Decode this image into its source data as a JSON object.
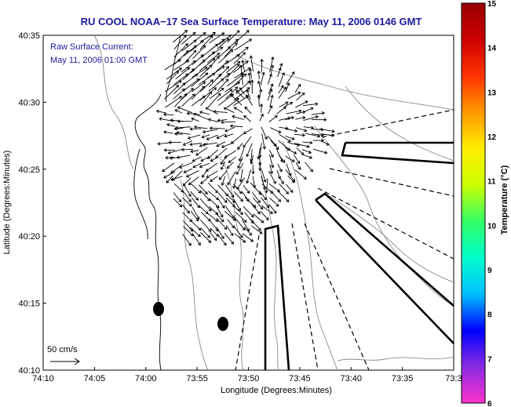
{
  "title": "RU COOL  NOAA−17  Sea Surface Temperature:  May 11, 2006 0146 GMT",
  "legend": {
    "line1": "Raw Surface Current:",
    "line2": "May 11, 2006 01:00 GMT",
    "scale_label": "50 cm/s"
  },
  "axes": {
    "xlabel": "Longitude (Degrees:Minutes)",
    "ylabel": "Latitude (Degrees:Minutes)",
    "x_ticks": [
      "74:10",
      "74:05",
      "74:00",
      "73:55",
      "73:50",
      "73:45",
      "73:40",
      "73:35",
      "73:3"
    ],
    "y_ticks": [
      "40:35",
      "40:30",
      "40:25",
      "40:20",
      "40:15",
      "40:10"
    ]
  },
  "colorbar": {
    "label": "Temperature (°C)",
    "ticks": [
      "15",
      "14",
      "13",
      "12",
      "11",
      "10",
      "9",
      "8",
      "7",
      "6"
    ],
    "min": 6,
    "max": 15,
    "colors": [
      "#ff33cc",
      "#8a2be2",
      "#0000ff",
      "#00bfff",
      "#00ffcc",
      "#33ff66",
      "#ccff00",
      "#ffee00",
      "#ff9900",
      "#ff3300",
      "#cc0000",
      "#990000"
    ]
  }
}
